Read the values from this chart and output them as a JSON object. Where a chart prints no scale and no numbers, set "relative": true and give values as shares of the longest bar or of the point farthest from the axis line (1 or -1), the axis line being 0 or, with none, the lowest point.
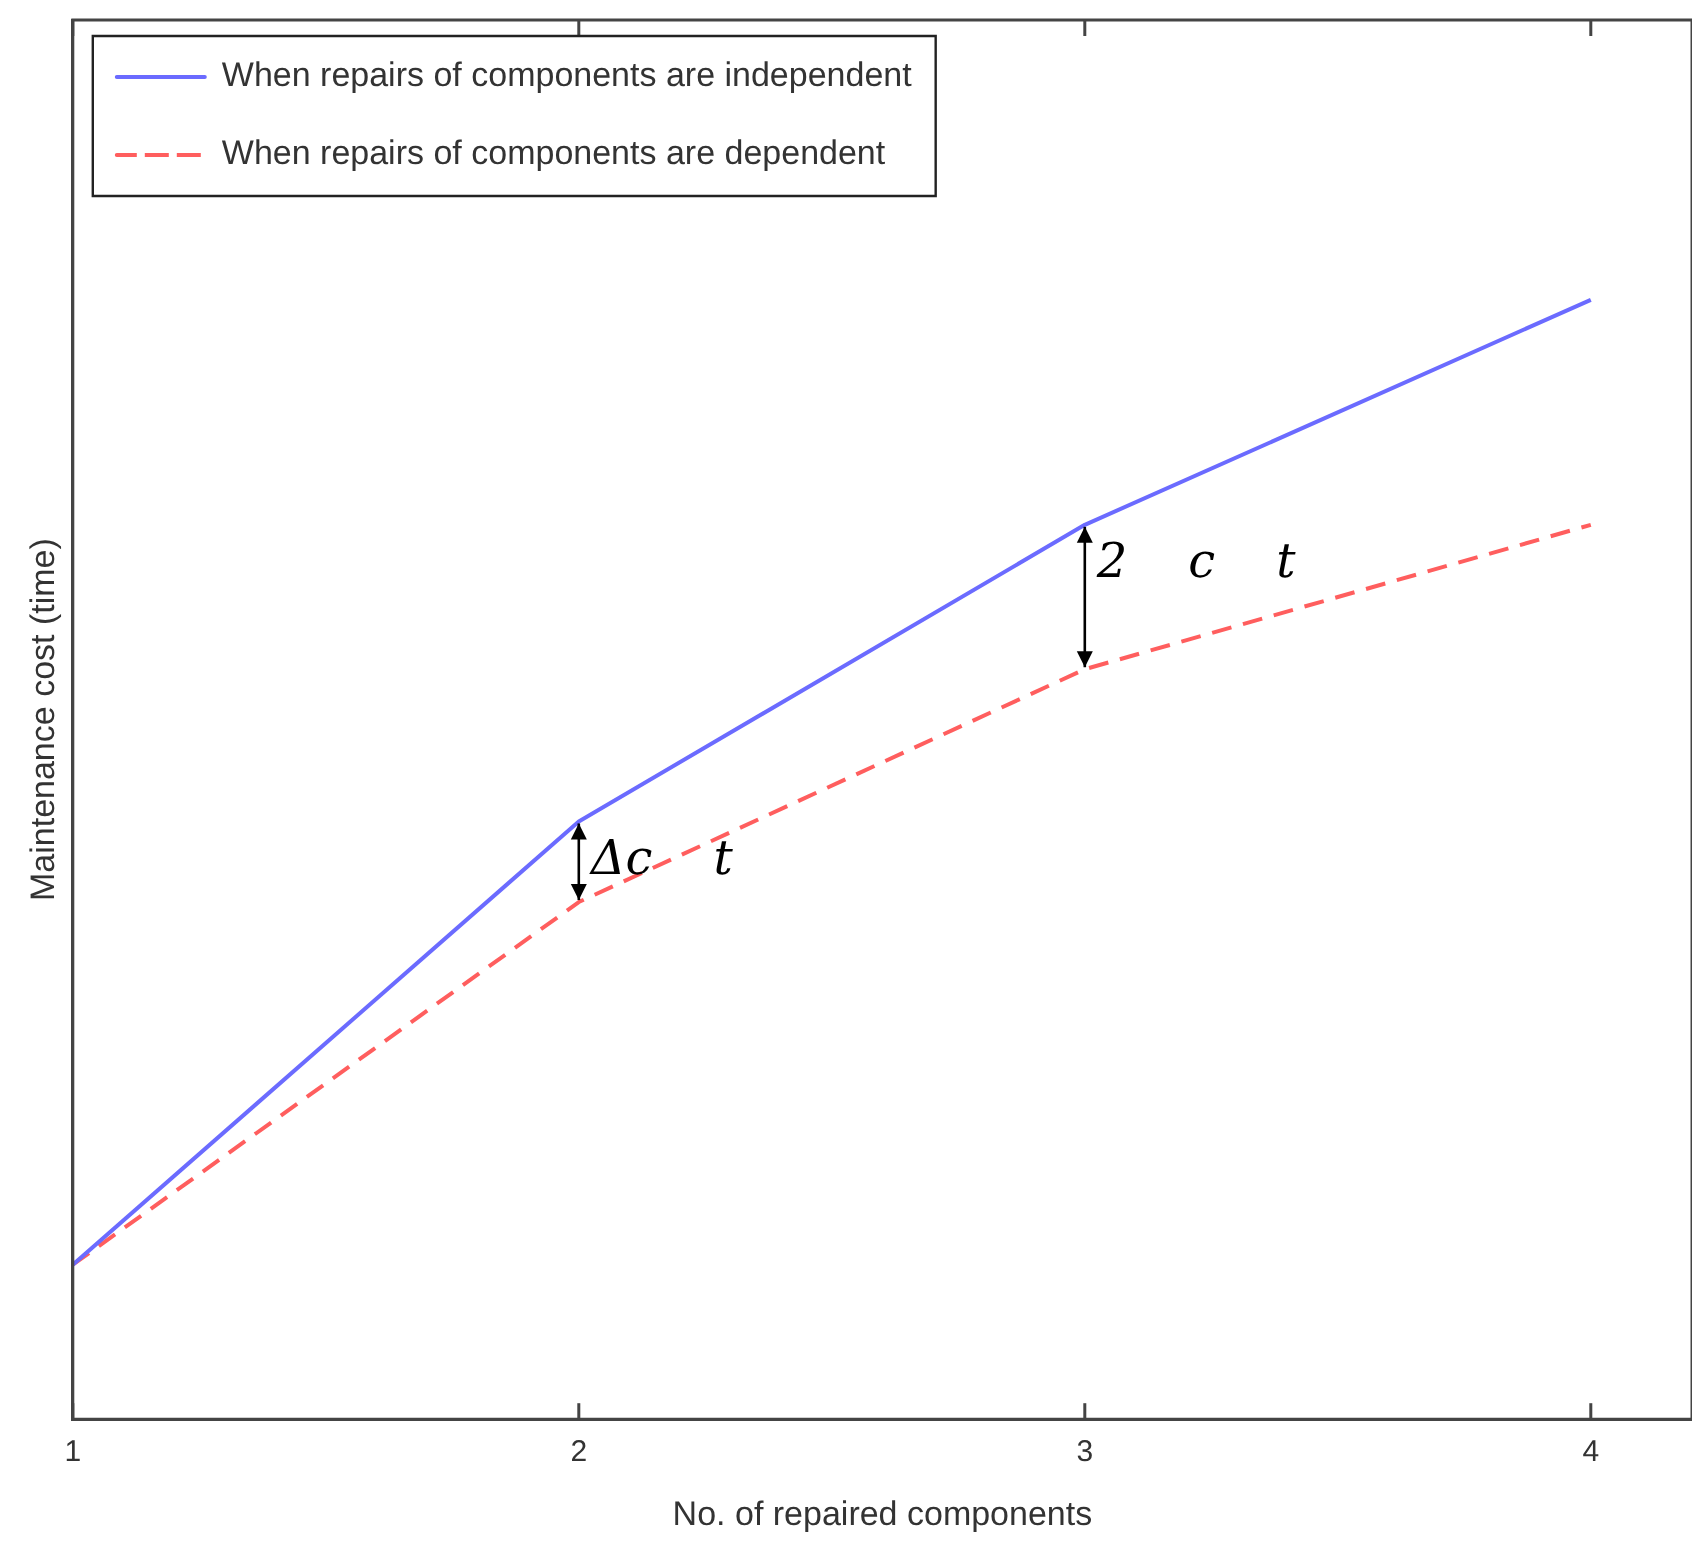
{
  "chart_data": {
    "type": "line",
    "xlabel": "No. of repaired components",
    "ylabel": "Maintenance cost (time)",
    "relative": true,
    "x": [
      1,
      2,
      3,
      4
    ],
    "xlim": [
      1,
      4.2
    ],
    "xticks": [
      1,
      2,
      3,
      4
    ],
    "series": [
      {
        "name": "When repairs of components are independent",
        "color": "#6b6bff",
        "line_style": "solid",
        "values": [
          0.138,
          0.534,
          0.799,
          1
        ]
      },
      {
        "name": "When repairs of components are dependent",
        "color": "#ff5e5e",
        "line_style": "dashed",
        "values": [
          0.138,
          0.462,
          0.67,
          0.799
        ]
      }
    ],
    "annotations": [
      {
        "text": "Δc    t",
        "x": 2,
        "y": 0.534
      },
      {
        "text": "2    c    t",
        "x": 3,
        "y": 0.799
      }
    ],
    "legend": "top left",
    "grid": false,
    "marker": "none"
  }
}
